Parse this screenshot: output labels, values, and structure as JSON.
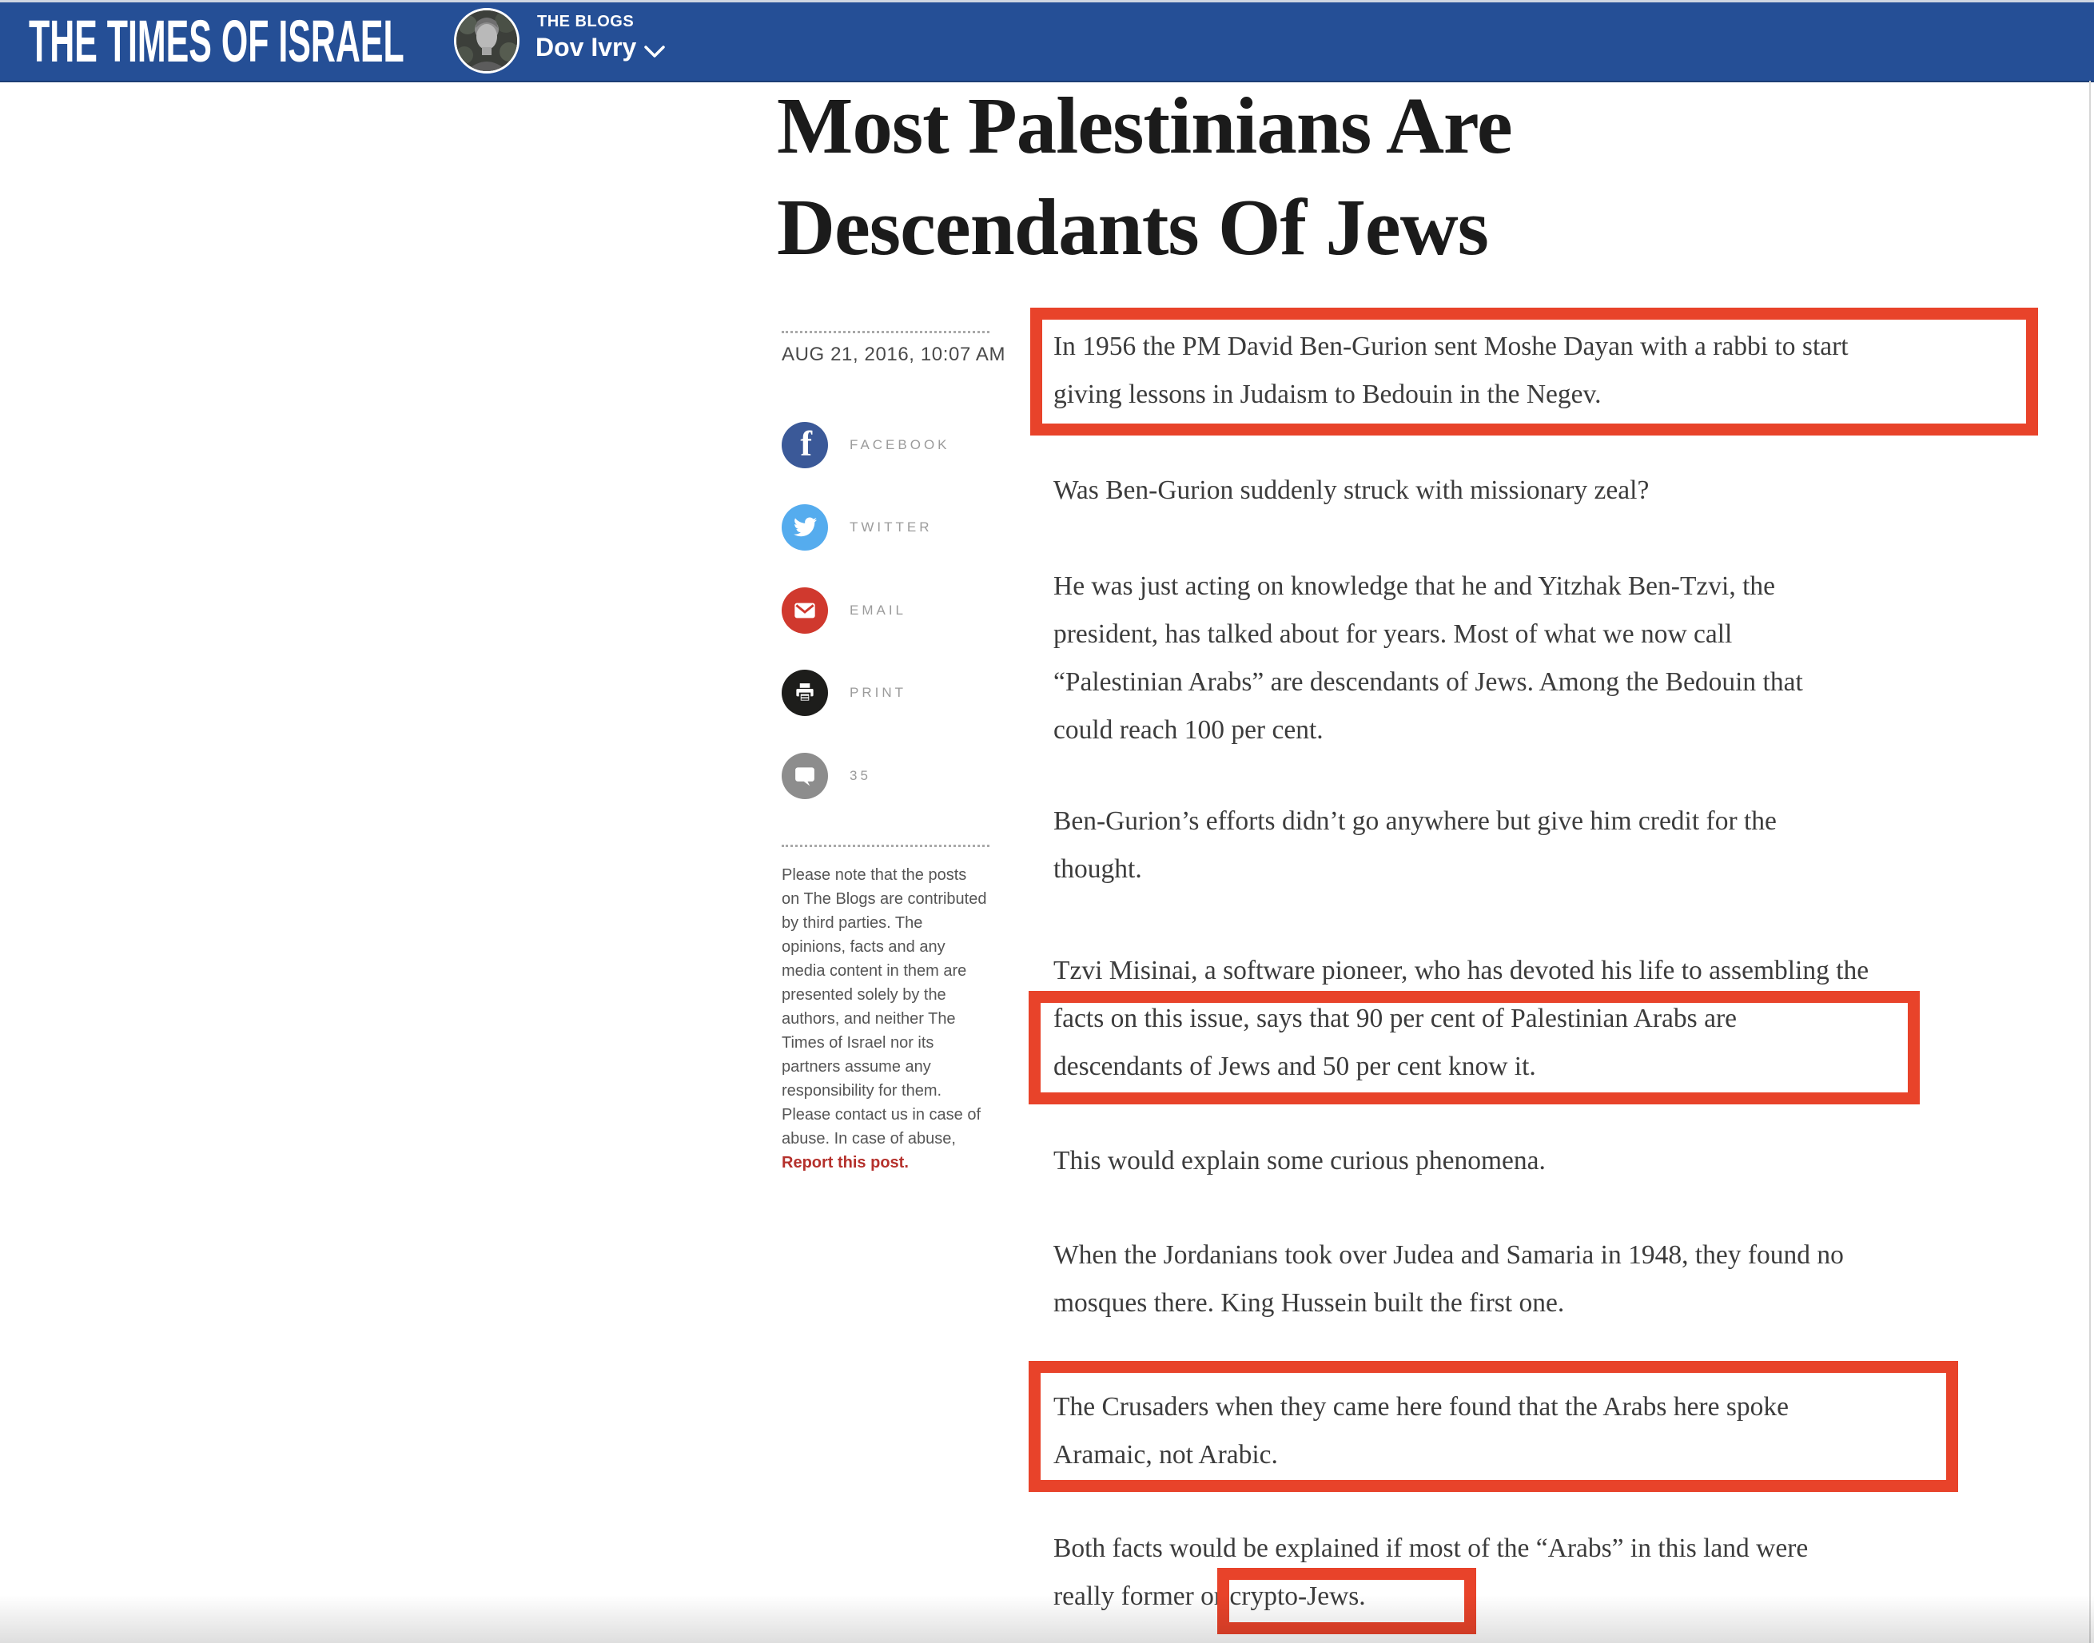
{
  "header": {
    "logo": "THE TIMES OF ISRAEL",
    "section_label": "THE BLOGS",
    "author": "Dov Ivry",
    "bar_color": "#254f96"
  },
  "article": {
    "title_lines": [
      "Most Palestinians Are",
      "Descendants Of Jews"
    ],
    "date": "AUG 21, 2016, 10:07 AM",
    "paragraphs": [
      {
        "lines": [
          "In 1956 the PM David Ben-Gurion sent Moshe Dayan with a rabbi to start",
          "giving lessons in Judaism to Bedouin in the Negev."
        ]
      },
      {
        "lines": [
          "Was Ben-Gurion suddenly struck with missionary zeal?"
        ]
      },
      {
        "lines": [
          "He was just acting on knowledge that he and Yitzhak Ben-Tzvi, the",
          "president, has talked about for years. Most of what we now call",
          "“Palestinian Arabs” are descendants of Jews. Among the Bedouin that",
          "could reach 100 per cent."
        ]
      },
      {
        "lines": [
          "Ben-Gurion’s efforts didn’t go anywhere but give him credit for the",
          "thought."
        ]
      },
      {
        "lines": [
          "Tzvi Misinai, a software pioneer, who has devoted his life to assembling the",
          "facts on this issue, says that 90 per cent of Palestinian Arabs are",
          "descendants of Jews and 50 per cent know it."
        ]
      },
      {
        "lines": [
          "This  would explain some curious phenomena."
        ]
      },
      {
        "lines": [
          "When the Jordanians took over Judea and Samaria in 1948, they found no",
          "mosques there. King Hussein built the first one."
        ]
      },
      {
        "lines": [
          "The Crusaders when they came here found that the Arabs here spoke",
          "Aramaic, not Arabic."
        ]
      },
      {
        "lines": [
          "Both facts would be explained if most of the “Arabs” in this land were",
          "really former or crypto-Jews."
        ]
      }
    ]
  },
  "share": {
    "items": [
      {
        "name": "facebook",
        "label": "FACEBOOK",
        "color": "#3b5998",
        "icon": "facebook-icon"
      },
      {
        "name": "twitter",
        "label": "TWITTER",
        "color": "#55acee",
        "icon": "twitter-bird-icon"
      },
      {
        "name": "email",
        "label": "EMAIL",
        "color": "#d0392e",
        "icon": "envelope-icon"
      },
      {
        "name": "print",
        "label": "PRINT",
        "color": "#1d1d1b",
        "icon": "printer-icon"
      },
      {
        "name": "comments",
        "label": "35",
        "color": "#8d8d8d",
        "icon": "speech-bubble-icon"
      }
    ]
  },
  "disclaimer": {
    "text": "Please note that the posts on The Blogs are contributed by third parties. The opinions, facts and any media content in them are presented solely by the authors, and neither The Times of Israel nor its partners assume any responsibility for them. Please contact us in case of abuse. In case of abuse,",
    "link": "Report this post."
  },
  "annotation": {
    "color": "#e8432a"
  }
}
